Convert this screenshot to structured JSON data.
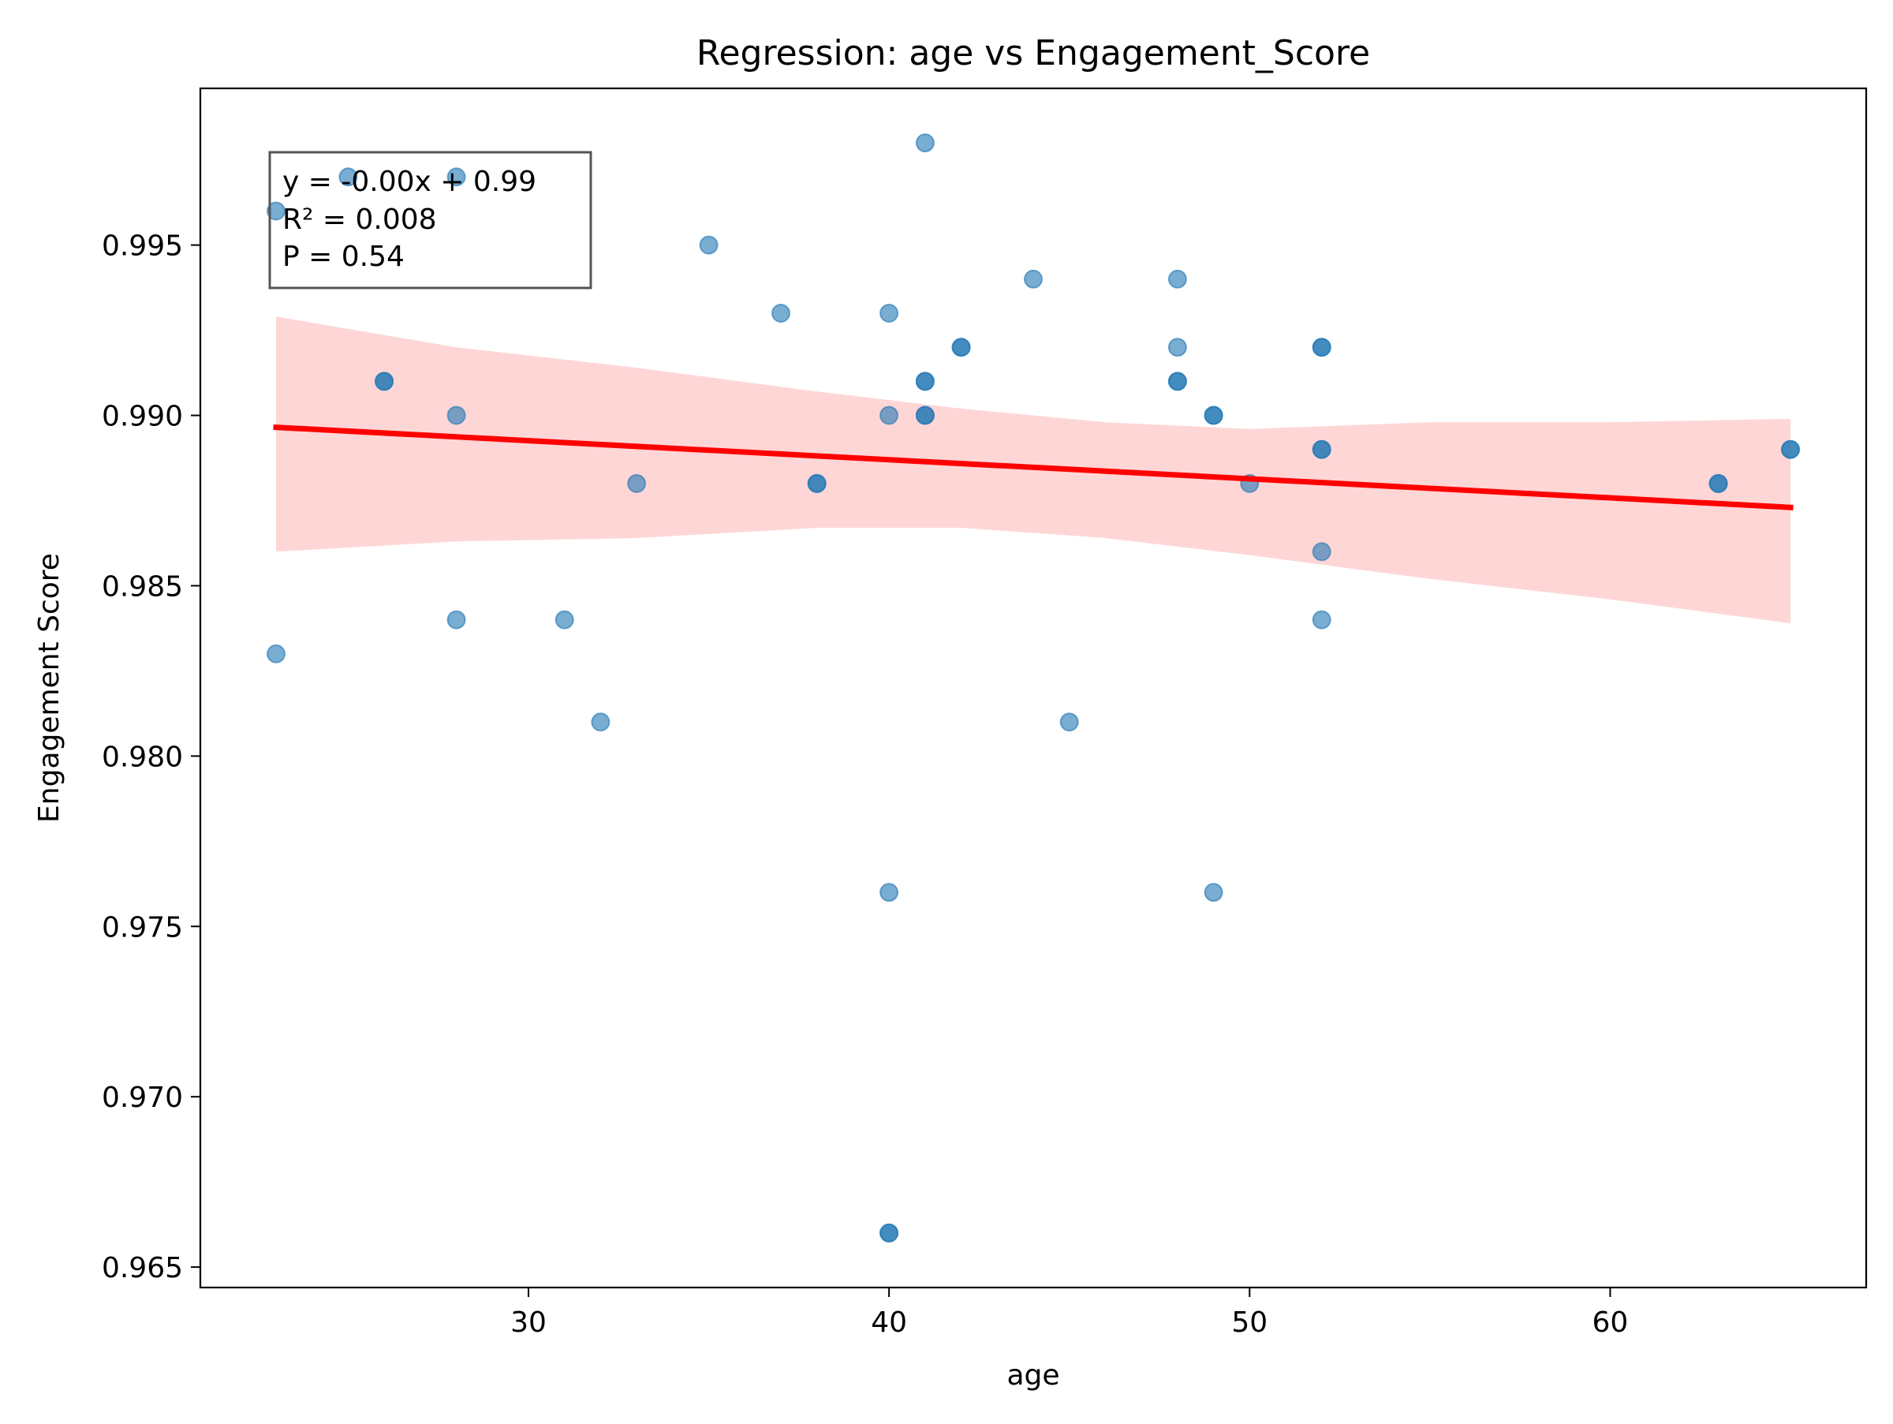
{
  "chart_data": {
    "type": "scatter",
    "title": "Regression: age vs Engagement_Score",
    "xlabel": "age",
    "ylabel": "Engagement Score",
    "xlim": [
      20.9,
      67.1
    ],
    "ylim": [
      0.9644,
      0.9996
    ],
    "xticks": [
      30,
      40,
      50,
      60
    ],
    "yticks": [
      0.965,
      0.97,
      0.975,
      0.98,
      0.985,
      0.99,
      0.995
    ],
    "ytick_labels": [
      "0.965",
      "0.970",
      "0.975",
      "0.980",
      "0.985",
      "0.990",
      "0.995"
    ],
    "grid": false,
    "point_color": "#1f77b4",
    "point_alpha": 0.6,
    "points": [
      {
        "x": 23,
        "y": 0.996
      },
      {
        "x": 23,
        "y": 0.983
      },
      {
        "x": 25,
        "y": 0.997
      },
      {
        "x": 26,
        "y": 0.991
      },
      {
        "x": 26,
        "y": 0.991
      },
      {
        "x": 28,
        "y": 0.997
      },
      {
        "x": 28,
        "y": 0.99
      },
      {
        "x": 28,
        "y": 0.984
      },
      {
        "x": 31,
        "y": 0.984
      },
      {
        "x": 32,
        "y": 0.981
      },
      {
        "x": 33,
        "y": 0.988
      },
      {
        "x": 35,
        "y": 0.995
      },
      {
        "x": 37,
        "y": 0.993
      },
      {
        "x": 38,
        "y": 0.988
      },
      {
        "x": 38,
        "y": 0.988
      },
      {
        "x": 40,
        "y": 0.993
      },
      {
        "x": 40,
        "y": 0.99
      },
      {
        "x": 40,
        "y": 0.976
      },
      {
        "x": 40,
        "y": 0.966
      },
      {
        "x": 40,
        "y": 0.966
      },
      {
        "x": 41,
        "y": 0.998
      },
      {
        "x": 41,
        "y": 0.991
      },
      {
        "x": 41,
        "y": 0.991
      },
      {
        "x": 41,
        "y": 0.99
      },
      {
        "x": 41,
        "y": 0.99
      },
      {
        "x": 42,
        "y": 0.992
      },
      {
        "x": 42,
        "y": 0.992
      },
      {
        "x": 44,
        "y": 0.994
      },
      {
        "x": 45,
        "y": 0.981
      },
      {
        "x": 48,
        "y": 0.994
      },
      {
        "x": 48,
        "y": 0.992
      },
      {
        "x": 48,
        "y": 0.991
      },
      {
        "x": 48,
        "y": 0.991
      },
      {
        "x": 49,
        "y": 0.99
      },
      {
        "x": 49,
        "y": 0.99
      },
      {
        "x": 49,
        "y": 0.976
      },
      {
        "x": 50,
        "y": 0.988
      },
      {
        "x": 52,
        "y": 0.992
      },
      {
        "x": 52,
        "y": 0.992
      },
      {
        "x": 52,
        "y": 0.989
      },
      {
        "x": 52,
        "y": 0.989
      },
      {
        "x": 52,
        "y": 0.986
      },
      {
        "x": 52,
        "y": 0.984
      },
      {
        "x": 63,
        "y": 0.988
      },
      {
        "x": 63,
        "y": 0.988
      },
      {
        "x": 65,
        "y": 0.989
      },
      {
        "x": 65,
        "y": 0.989
      }
    ],
    "regression": {
      "color": "#ff0000",
      "line": [
        {
          "x": 23,
          "y": 0.98965
        },
        {
          "x": 65,
          "y": 0.9873
        }
      ],
      "band_color": "#ffd6d6",
      "band_upper": [
        {
          "x": 23,
          "y": 0.9929
        },
        {
          "x": 28,
          "y": 0.992
        },
        {
          "x": 33,
          "y": 0.9914
        },
        {
          "x": 38,
          "y": 0.9907
        },
        {
          "x": 42,
          "y": 0.9902
        },
        {
          "x": 46,
          "y": 0.9898
        },
        {
          "x": 50,
          "y": 0.9896
        },
        {
          "x": 55,
          "y": 0.9898
        },
        {
          "x": 60,
          "y": 0.9898
        },
        {
          "x": 65,
          "y": 0.9899
        }
      ],
      "band_lower": [
        {
          "x": 23,
          "y": 0.986
        },
        {
          "x": 28,
          "y": 0.9863
        },
        {
          "x": 33,
          "y": 0.9864
        },
        {
          "x": 38,
          "y": 0.9867
        },
        {
          "x": 42,
          "y": 0.9867
        },
        {
          "x": 46,
          "y": 0.9864
        },
        {
          "x": 50,
          "y": 0.9859
        },
        {
          "x": 55,
          "y": 0.9852
        },
        {
          "x": 60,
          "y": 0.9846
        },
        {
          "x": 65,
          "y": 0.9839
        }
      ]
    },
    "annotation": {
      "lines": [
        "y = -0.00x + 0.99",
        "R² = 0.008",
        "P = 0.54"
      ],
      "placement": "top-left"
    }
  }
}
